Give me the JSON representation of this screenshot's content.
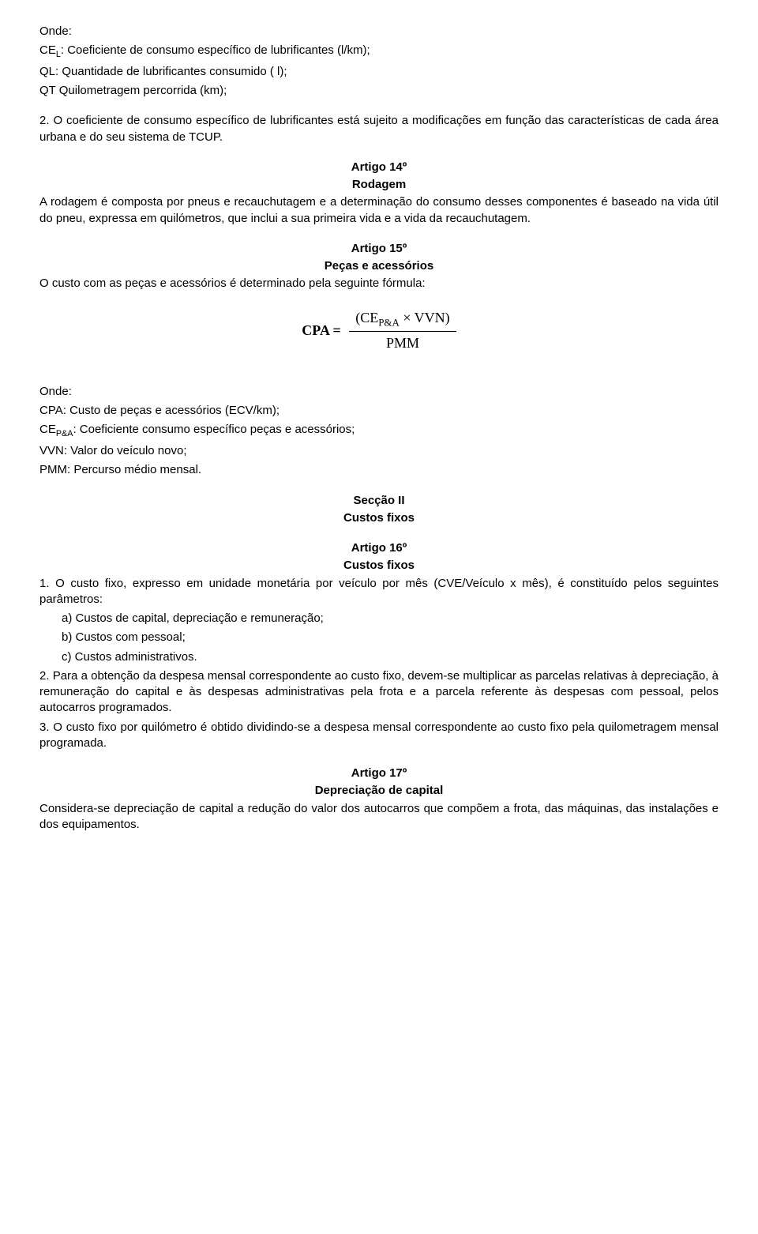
{
  "def1": {
    "onde": "Onde:",
    "l1": "CEL: Coeficiente de consumo específico de lubrificantes (l/km);",
    "l1_pre": "CE",
    "l1_sub": "L",
    "l1_post": ": Coeficiente de consumo específico de lubrificantes (l/km);",
    "l2": "QL: Quantidade de lubrificantes consumido ( l);",
    "l3": "QT Quilometragem percorrida (km);"
  },
  "p2": "2. O coeficiente de consumo específico de lubrificantes está sujeito a modificações em função das características de cada área urbana e do seu sistema de TCUP.",
  "art14": {
    "num": "Artigo 14º",
    "title": "Rodagem",
    "body": "A rodagem é composta por pneus e recauchutagem e a determinação do consumo desses componentes é baseado na vida útil do pneu, expressa em quilómetros, que inclui a sua primeira vida e a vida da recauchutagem."
  },
  "art15": {
    "num": "Artigo 15º",
    "title": "Peças e acessórios",
    "body": "O custo com as peças e acessórios é determinado pela seguinte fórmula:"
  },
  "formula": {
    "lhs": "CPA =",
    "num_pre": "(CE",
    "num_sub": "P&A",
    "num_post": " × VVN)",
    "den": "PMM"
  },
  "def2": {
    "onde": "Onde:",
    "l1": "CPA: Custo de peças e acessórios (ECV/km);",
    "l2_pre": "CE",
    "l2_sub": "P&A",
    "l2_post": ": Coeficiente consumo específico peças e acessórios;",
    "l3": "VVN: Valor do veículo novo;",
    "l4": "PMM: Percurso médio mensal."
  },
  "sec2": {
    "num": "Secção II",
    "title": "Custos fixos"
  },
  "art16": {
    "num": "Artigo 16º",
    "title": "Custos fixos",
    "p1": "1. O custo fixo, expresso em unidade monetária por veículo por mês (CVE/Veículo x mês), é constituído pelos seguintes parâmetros:",
    "a": "a) Custos de capital, depreciação e remuneração;",
    "b": "b) Custos com pessoal;",
    "c": "c) Custos administrativos.",
    "p2": "2. Para a obtenção da despesa mensal correspondente ao custo fixo, devem-se multiplicar as parcelas relativas à depreciação, à remuneração do capital e às despesas administrativas pela frota e a parcela referente às despesas com pessoal, pelos autocarros programados.",
    "p3": "3. O custo fixo por quilómetro é obtido dividindo-se a despesa mensal correspondente ao custo fixo pela quilometragem mensal programada."
  },
  "art17": {
    "num": "Artigo 17º",
    "title": "Depreciação de capital",
    "body": "Considera-se depreciação de capital a redução do valor dos autocarros que compõem a frota, das máquinas, das instalações e dos equipamentos."
  }
}
